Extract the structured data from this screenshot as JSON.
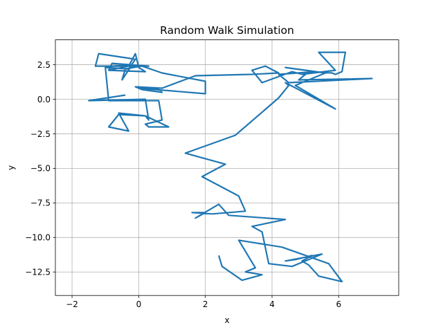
{
  "chart_data": {
    "type": "line",
    "title": "Random Walk Simulation",
    "xlabel": "x",
    "ylabel": "y",
    "xlim": [
      -2.5,
      7.8
    ],
    "ylim": [
      -14.2,
      4.3
    ],
    "grid": true,
    "x_ticks": [
      -2,
      0,
      2,
      4,
      6
    ],
    "y_ticks": [
      2.5,
      0.0,
      -2.5,
      -5.0,
      -7.5,
      -10.0,
      -12.5
    ],
    "x_tick_labels": [
      "−2",
      "0",
      "2",
      "4",
      "6"
    ],
    "y_tick_labels": [
      "2.5",
      "0.0",
      "−2.5",
      "−5.0",
      "−7.5",
      "−10.0",
      "−12.5"
    ],
    "series_color": "#1f77b4",
    "series": [
      {
        "points": [
          [
            2.4,
            -11.3
          ],
          [
            2.5,
            -12.1
          ],
          [
            3.1,
            -13.1
          ],
          [
            3.7,
            -12.7
          ],
          [
            3.2,
            -12.5
          ],
          [
            3.5,
            -12.2
          ],
          [
            3.0,
            -10.2
          ],
          [
            4.3,
            -10.7
          ],
          [
            5.7,
            -11.9
          ],
          [
            6.1,
            -13.2
          ],
          [
            5.4,
            -12.8
          ],
          [
            5.1,
            -12.0
          ],
          [
            4.9,
            -11.7
          ],
          [
            5.2,
            -11.3
          ],
          [
            4.7,
            -11.6
          ],
          [
            4.4,
            -11.7
          ],
          [
            5.5,
            -11.2
          ],
          [
            4.6,
            -12.1
          ],
          [
            3.9,
            -11.9
          ],
          [
            3.7,
            -9.6
          ],
          [
            3.4,
            -9.2
          ],
          [
            4.4,
            -8.7
          ],
          [
            2.7,
            -8.4
          ],
          [
            2.4,
            -7.6
          ],
          [
            1.7,
            -8.6
          ],
          [
            2.0,
            -8.2
          ],
          [
            1.6,
            -8.2
          ],
          [
            2.2,
            -8.3
          ],
          [
            3.2,
            -8.1
          ],
          [
            3.0,
            -7.0
          ],
          [
            1.9,
            -5.6
          ],
          [
            2.6,
            -4.7
          ],
          [
            1.4,
            -3.9
          ],
          [
            2.9,
            -2.6
          ],
          [
            4.2,
            0.1
          ],
          [
            4.5,
            1.0
          ],
          [
            4.4,
            1.2
          ],
          [
            5.9,
            -0.7
          ],
          [
            4.7,
            1.0
          ],
          [
            5.6,
            1.9
          ],
          [
            4.4,
            2.3
          ],
          [
            5.3,
            2.0
          ],
          [
            4.2,
            1.8
          ],
          [
            4.5,
            1.2
          ],
          [
            7.0,
            1.5
          ],
          [
            4.8,
            1.4
          ],
          [
            5.1,
            2.0
          ],
          [
            5.8,
            1.9
          ],
          [
            5.9,
            1.8
          ],
          [
            6.1,
            2.0
          ],
          [
            6.2,
            3.4
          ],
          [
            5.4,
            3.4
          ],
          [
            5.9,
            2.1
          ],
          [
            4.9,
            1.8
          ],
          [
            4.6,
            2.0
          ],
          [
            3.7,
            1.2
          ],
          [
            3.4,
            2.1
          ],
          [
            3.8,
            2.4
          ],
          [
            4.2,
            1.9
          ],
          [
            3.4,
            1.8
          ],
          [
            1.7,
            1.7
          ],
          [
            0.7,
            0.8
          ],
          [
            -0.1,
            0.9
          ],
          [
            0.1,
            0.7
          ],
          [
            0.7,
            0.5
          ],
          [
            0.6,
            0.7
          ],
          [
            0.0,
            0.8
          ],
          [
            2.0,
            0.4
          ],
          [
            2.0,
            1.3
          ],
          [
            0.7,
            1.9
          ],
          [
            0.1,
            2.4
          ],
          [
            -0.4,
            2.2
          ],
          [
            -0.5,
            1.4
          ],
          [
            -0.2,
            2.5
          ],
          [
            -0.8,
            2.4
          ],
          [
            -0.9,
            2.1
          ],
          [
            0.2,
            2.0
          ],
          [
            0.0,
            2.3
          ],
          [
            -0.1,
            3.3
          ],
          [
            -0.3,
            2.4
          ],
          [
            -0.9,
            2.1
          ],
          [
            -0.8,
            2.6
          ],
          [
            0.3,
            2.4
          ],
          [
            -1.3,
            2.4
          ],
          [
            -1.2,
            3.3
          ],
          [
            -0.1,
            2.9
          ],
          [
            -0.3,
            2.2
          ],
          [
            -1.0,
            2.3
          ],
          [
            -0.9,
            -0.1
          ],
          [
            0.6,
            -0.1
          ],
          [
            0.7,
            -1.5
          ],
          [
            0.2,
            -1.8
          ],
          [
            0.3,
            -2.0
          ],
          [
            0.9,
            -2.0
          ],
          [
            0.2,
            -1.2
          ],
          [
            -0.6,
            -1.0
          ],
          [
            -0.3,
            -2.3
          ],
          [
            -0.9,
            -2.0
          ],
          [
            -0.6,
            -1.1
          ],
          [
            0.2,
            -1.2
          ],
          [
            0.3,
            -1.5
          ],
          [
            0.2,
            0.0
          ],
          [
            -1.5,
            -0.1
          ],
          [
            -0.4,
            0.3
          ]
        ]
      }
    ]
  }
}
